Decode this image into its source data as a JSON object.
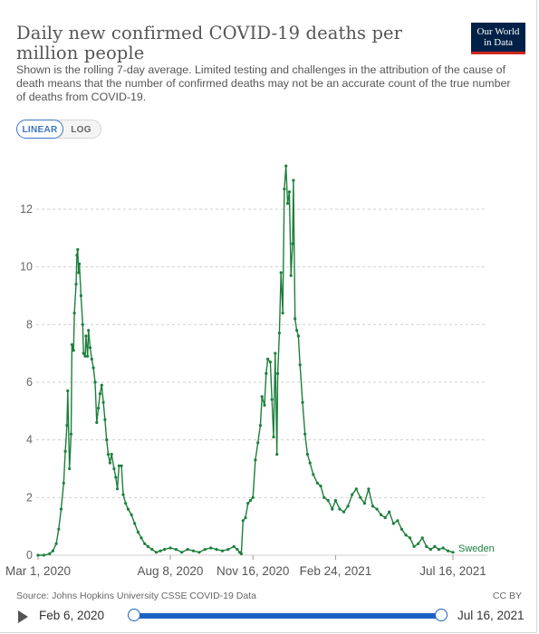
{
  "title": "Daily new confirmed COVID-19 deaths per million people",
  "subtitle": "Shown is the rolling 7-day average. Limited testing and challenges in the attribution of the cause of death means that the number of confirmed deaths may not be an accurate count of the true number of deaths from COVID-19.",
  "logo": {
    "line1": "Our World",
    "line2": "in Data"
  },
  "toggles": {
    "linear": "LINEAR",
    "log": "LOG",
    "active": "LINEAR"
  },
  "footer": {
    "source": "Source: Johns Hopkins University CSSE COVID-19 Data",
    "license": "CC BY"
  },
  "timeline": {
    "start": "Feb 6, 2020",
    "end": "Jul 16, 2021"
  },
  "colors": {
    "series": "#1d7f3c",
    "accent": "#1b64c6",
    "grid": "#cfcfcf",
    "tick": "#666666"
  },
  "chart_data": {
    "type": "line",
    "title": "Daily new confirmed COVID-19 deaths per million people",
    "x_range": [
      "2020-03-01",
      "2021-07-16"
    ],
    "ylim": [
      0,
      13.6
    ],
    "y_ticks": [
      0,
      2,
      4,
      6,
      8,
      10,
      12
    ],
    "x_ticks": [
      "Mar 1, 2020",
      "Aug 8, 2020",
      "Nov 16, 2020",
      "Feb 24, 2021",
      "Jul 16, 2021"
    ],
    "grid": "horizontal dashed",
    "scale": "linear",
    "series": [
      {
        "name": "Sweden",
        "color": "#1d7f3c",
        "points": [
          [
            "2020-03-01",
            0
          ],
          [
            "2020-03-08",
            0
          ],
          [
            "2020-03-15",
            0.05
          ],
          [
            "2020-03-19",
            0.15
          ],
          [
            "2020-03-23",
            0.4
          ],
          [
            "2020-03-26",
            0.9
          ],
          [
            "2020-03-29",
            1.6
          ],
          [
            "2020-04-01",
            2.5
          ],
          [
            "2020-04-03",
            3.6
          ],
          [
            "2020-04-05",
            4.5
          ],
          [
            "2020-04-06",
            5.7
          ],
          [
            "2020-04-08",
            3.0
          ],
          [
            "2020-04-10",
            4.2
          ],
          [
            "2020-04-11",
            7.3
          ],
          [
            "2020-04-13",
            7.1
          ],
          [
            "2020-04-14",
            8.4
          ],
          [
            "2020-04-16",
            9.4
          ],
          [
            "2020-04-17",
            10.4
          ],
          [
            "2020-04-18",
            10.6
          ],
          [
            "2020-04-19",
            9.8
          ],
          [
            "2020-04-20",
            10.1
          ],
          [
            "2020-04-22",
            9.0
          ],
          [
            "2020-04-24",
            8.0
          ],
          [
            "2020-04-25",
            7.0
          ],
          [
            "2020-04-27",
            6.9
          ],
          [
            "2020-04-28",
            7.6
          ],
          [
            "2020-04-30",
            6.9
          ],
          [
            "2020-05-01",
            7.8
          ],
          [
            "2020-05-03",
            7.2
          ],
          [
            "2020-05-05",
            6.8
          ],
          [
            "2020-05-07",
            6.5
          ],
          [
            "2020-05-09",
            6.0
          ],
          [
            "2020-05-11",
            4.6
          ],
          [
            "2020-05-13",
            5.1
          ],
          [
            "2020-05-15",
            5.6
          ],
          [
            "2020-05-17",
            5.9
          ],
          [
            "2020-05-19",
            5.3
          ],
          [
            "2020-05-21",
            4.7
          ],
          [
            "2020-05-23",
            4.0
          ],
          [
            "2020-05-25",
            3.5
          ],
          [
            "2020-05-27",
            3.2
          ],
          [
            "2020-05-29",
            3.5
          ],
          [
            "2020-06-01",
            3.0
          ],
          [
            "2020-06-03",
            2.7
          ],
          [
            "2020-06-05",
            2.3
          ],
          [
            "2020-06-07",
            3.1
          ],
          [
            "2020-06-10",
            3.1
          ],
          [
            "2020-06-12",
            2.1
          ],
          [
            "2020-06-15",
            1.8
          ],
          [
            "2020-06-18",
            1.6
          ],
          [
            "2020-06-22",
            1.4
          ],
          [
            "2020-06-26",
            1.1
          ],
          [
            "2020-06-30",
            0.8
          ],
          [
            "2020-07-04",
            0.6
          ],
          [
            "2020-07-08",
            0.4
          ],
          [
            "2020-07-12",
            0.3
          ],
          [
            "2020-07-17",
            0.2
          ],
          [
            "2020-07-22",
            0.1
          ],
          [
            "2020-07-27",
            0.15
          ],
          [
            "2020-08-01",
            0.2
          ],
          [
            "2020-08-08",
            0.25
          ],
          [
            "2020-08-15",
            0.2
          ],
          [
            "2020-08-22",
            0.1
          ],
          [
            "2020-08-29",
            0.2
          ],
          [
            "2020-09-05",
            0.15
          ],
          [
            "2020-09-12",
            0.1
          ],
          [
            "2020-09-19",
            0.2
          ],
          [
            "2020-09-26",
            0.25
          ],
          [
            "2020-10-03",
            0.2
          ],
          [
            "2020-10-10",
            0.15
          ],
          [
            "2020-10-17",
            0.2
          ],
          [
            "2020-10-24",
            0.3
          ],
          [
            "2020-10-28",
            0.2
          ],
          [
            "2020-10-31",
            0.1
          ],
          [
            "2020-11-02",
            0.05
          ],
          [
            "2020-11-04",
            1.2
          ],
          [
            "2020-11-07",
            1.3
          ],
          [
            "2020-11-10",
            1.8
          ],
          [
            "2020-11-13",
            1.9
          ],
          [
            "2020-11-16",
            2.0
          ],
          [
            "2020-11-19",
            3.3
          ],
          [
            "2020-11-22",
            3.9
          ],
          [
            "2020-11-25",
            4.5
          ],
          [
            "2020-11-27",
            5.5
          ],
          [
            "2020-11-30",
            5.2
          ],
          [
            "2020-12-02",
            6.3
          ],
          [
            "2020-12-04",
            6.8
          ],
          [
            "2020-12-07",
            6.7
          ],
          [
            "2020-12-09",
            5.4
          ],
          [
            "2020-12-11",
            4.1
          ],
          [
            "2020-12-13",
            7.0
          ],
          [
            "2020-12-15",
            3.5
          ],
          [
            "2020-12-16",
            6.3
          ],
          [
            "2020-12-18",
            7.7
          ],
          [
            "2020-12-20",
            9.8
          ],
          [
            "2020-12-22",
            8.4
          ],
          [
            "2020-12-24",
            12.7
          ],
          [
            "2020-12-26",
            13.5
          ],
          [
            "2020-12-28",
            12.2
          ],
          [
            "2020-12-30",
            12.6
          ],
          [
            "2021-01-01",
            9.7
          ],
          [
            "2021-01-03",
            10.8
          ],
          [
            "2021-01-04",
            13.0
          ],
          [
            "2021-01-06",
            8.2
          ],
          [
            "2021-01-08",
            7.8
          ],
          [
            "2021-01-10",
            7.6
          ],
          [
            "2021-01-12",
            6.6
          ],
          [
            "2021-01-15",
            5.3
          ],
          [
            "2021-01-18",
            4.2
          ],
          [
            "2021-01-21",
            3.5
          ],
          [
            "2021-01-24",
            3.2
          ],
          [
            "2021-01-28",
            2.8
          ],
          [
            "2021-02-02",
            2.5
          ],
          [
            "2021-02-06",
            2.4
          ],
          [
            "2021-02-10",
            2.0
          ],
          [
            "2021-02-15",
            1.9
          ],
          [
            "2021-02-20",
            1.6
          ],
          [
            "2021-02-24",
            1.9
          ],
          [
            "2021-03-01",
            1.6
          ],
          [
            "2021-03-06",
            1.5
          ],
          [
            "2021-03-11",
            1.7
          ],
          [
            "2021-03-16",
            2.1
          ],
          [
            "2021-03-21",
            2.3
          ],
          [
            "2021-03-26",
            2.0
          ],
          [
            "2021-03-31",
            1.8
          ],
          [
            "2021-04-05",
            2.3
          ],
          [
            "2021-04-10",
            1.7
          ],
          [
            "2021-04-15",
            1.6
          ],
          [
            "2021-04-20",
            1.4
          ],
          [
            "2021-04-25",
            1.3
          ],
          [
            "2021-04-30",
            1.5
          ],
          [
            "2021-05-05",
            1.1
          ],
          [
            "2021-05-10",
            1.2
          ],
          [
            "2021-05-15",
            0.9
          ],
          [
            "2021-05-20",
            0.7
          ],
          [
            "2021-05-25",
            0.6
          ],
          [
            "2021-05-30",
            0.3
          ],
          [
            "2021-06-04",
            0.4
          ],
          [
            "2021-06-09",
            0.6
          ],
          [
            "2021-06-14",
            0.3
          ],
          [
            "2021-06-19",
            0.2
          ],
          [
            "2021-06-24",
            0.3
          ],
          [
            "2021-06-29",
            0.2
          ],
          [
            "2021-07-04",
            0.25
          ],
          [
            "2021-07-10",
            0.15
          ],
          [
            "2021-07-16",
            0.1
          ]
        ]
      }
    ]
  }
}
